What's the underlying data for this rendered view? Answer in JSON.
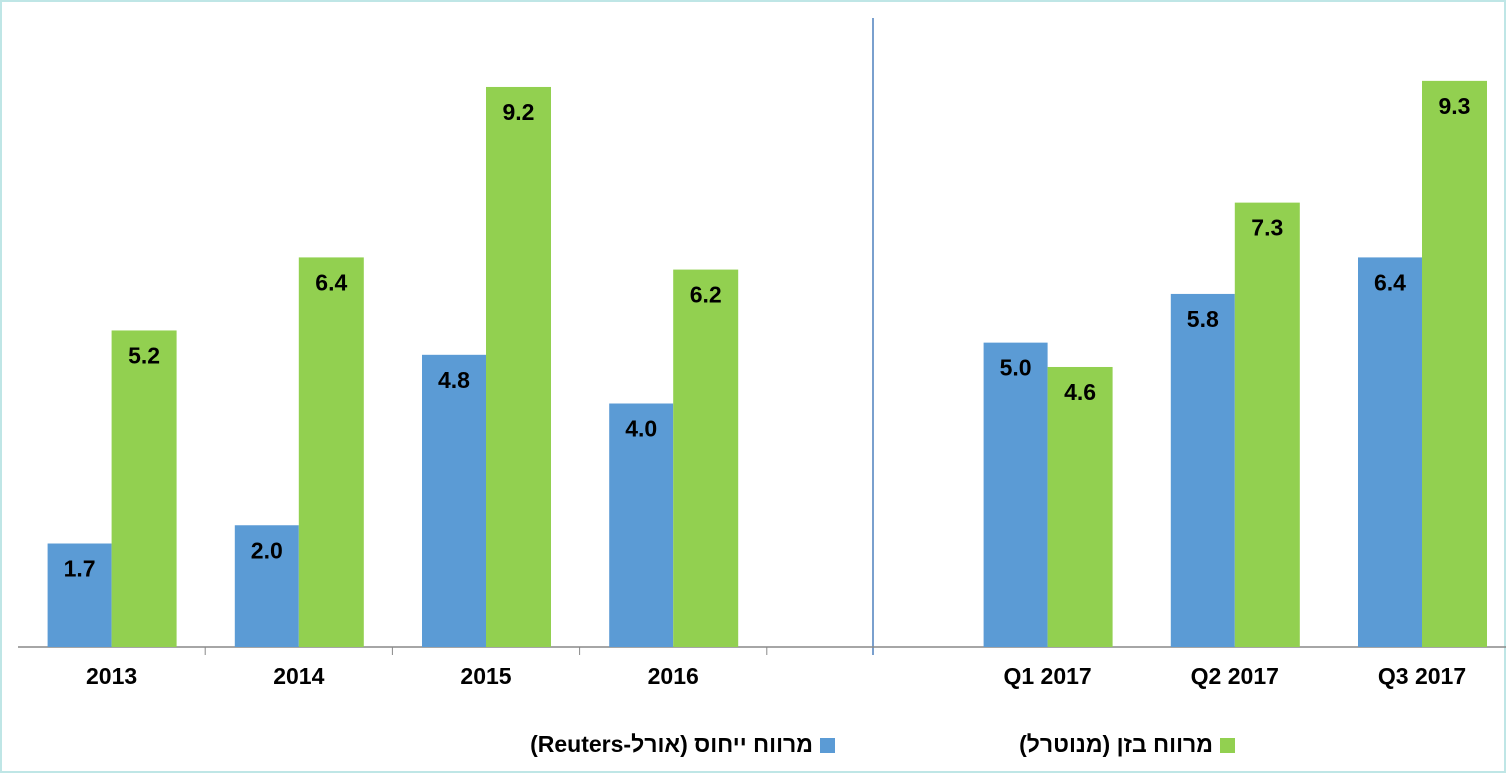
{
  "chart_data": {
    "type": "bar",
    "categories": [
      "2013",
      "2014",
      "2015",
      "2016",
      null,
      "Q1 2017",
      "Q2 2017",
      "Q3 2017"
    ],
    "series": [
      {
        "name": "מרווח ייחוס (אורל-Reuters)",
        "color": "#5b9bd5",
        "values": [
          1.7,
          2.0,
          4.8,
          4.0,
          null,
          5.0,
          5.8,
          6.4
        ],
        "value_labels": [
          "1.7",
          "2.0",
          "4.8",
          "4.0",
          null,
          "5.0",
          "5.8",
          "6.4"
        ]
      },
      {
        "name": "מרווח בזן (מנוטרל)",
        "color": "#92d050",
        "values": [
          5.2,
          6.4,
          9.2,
          6.2,
          null,
          4.6,
          7.3,
          9.3
        ],
        "value_labels": [
          "5.2",
          "6.4",
          "9.2",
          "6.2",
          null,
          "4.6",
          "7.3",
          "9.3"
        ]
      }
    ],
    "ylim": [
      0,
      10.3
    ],
    "legend": "bottom"
  }
}
